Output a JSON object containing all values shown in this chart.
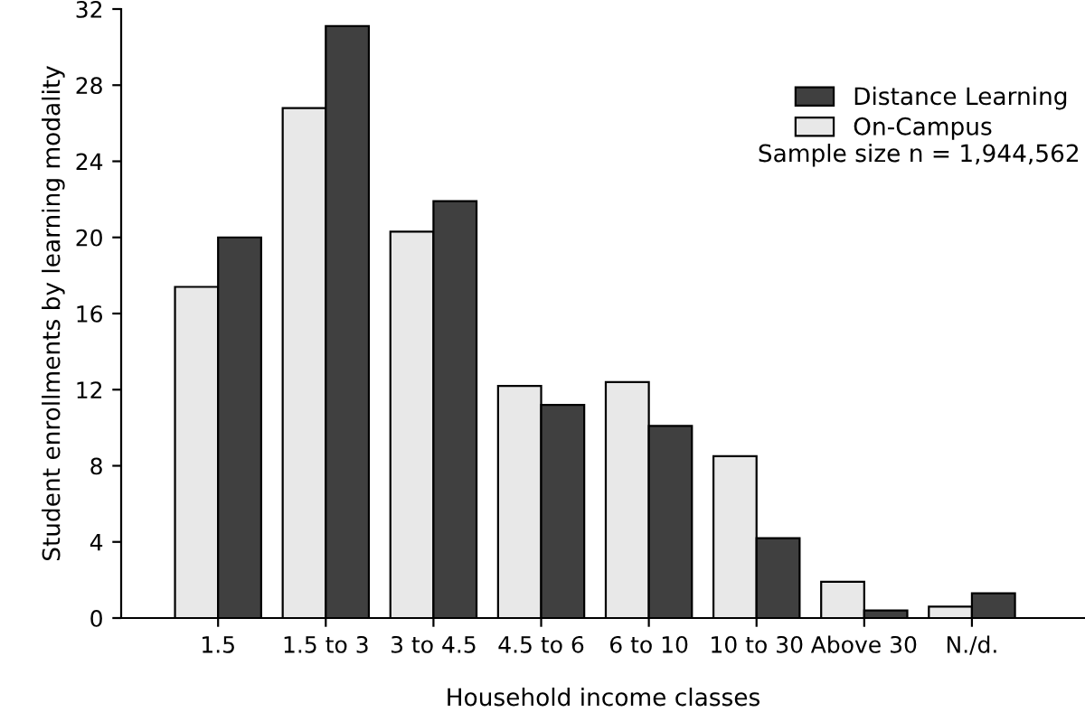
{
  "chart_data": {
    "type": "bar",
    "xlabel": "Household income classes",
    "ylabel": "Student enrollments by learning modality",
    "categories": [
      "1.5",
      "1.5 to 3",
      "3 to 4.5",
      "4.5 to 6",
      "6 to 10",
      "10 to 30",
      "Above 30",
      "N./d."
    ],
    "series": [
      {
        "name": "On-Campus",
        "color": "#e8e8e8",
        "values": [
          17.4,
          26.8,
          20.3,
          12.2,
          12.4,
          8.5,
          1.9,
          0.6
        ]
      },
      {
        "name": "Distance Learning",
        "color": "#404040",
        "values": [
          20.0,
          31.1,
          21.9,
          11.2,
          10.1,
          4.2,
          0.4,
          1.3
        ]
      }
    ],
    "ylim": [
      0,
      32
    ],
    "yticks": [
      0,
      4,
      8,
      12,
      16,
      20,
      24,
      28,
      32
    ],
    "grid": false,
    "legend": "top right",
    "annotations": [
      "Sample size n = 1,944,562"
    ]
  }
}
